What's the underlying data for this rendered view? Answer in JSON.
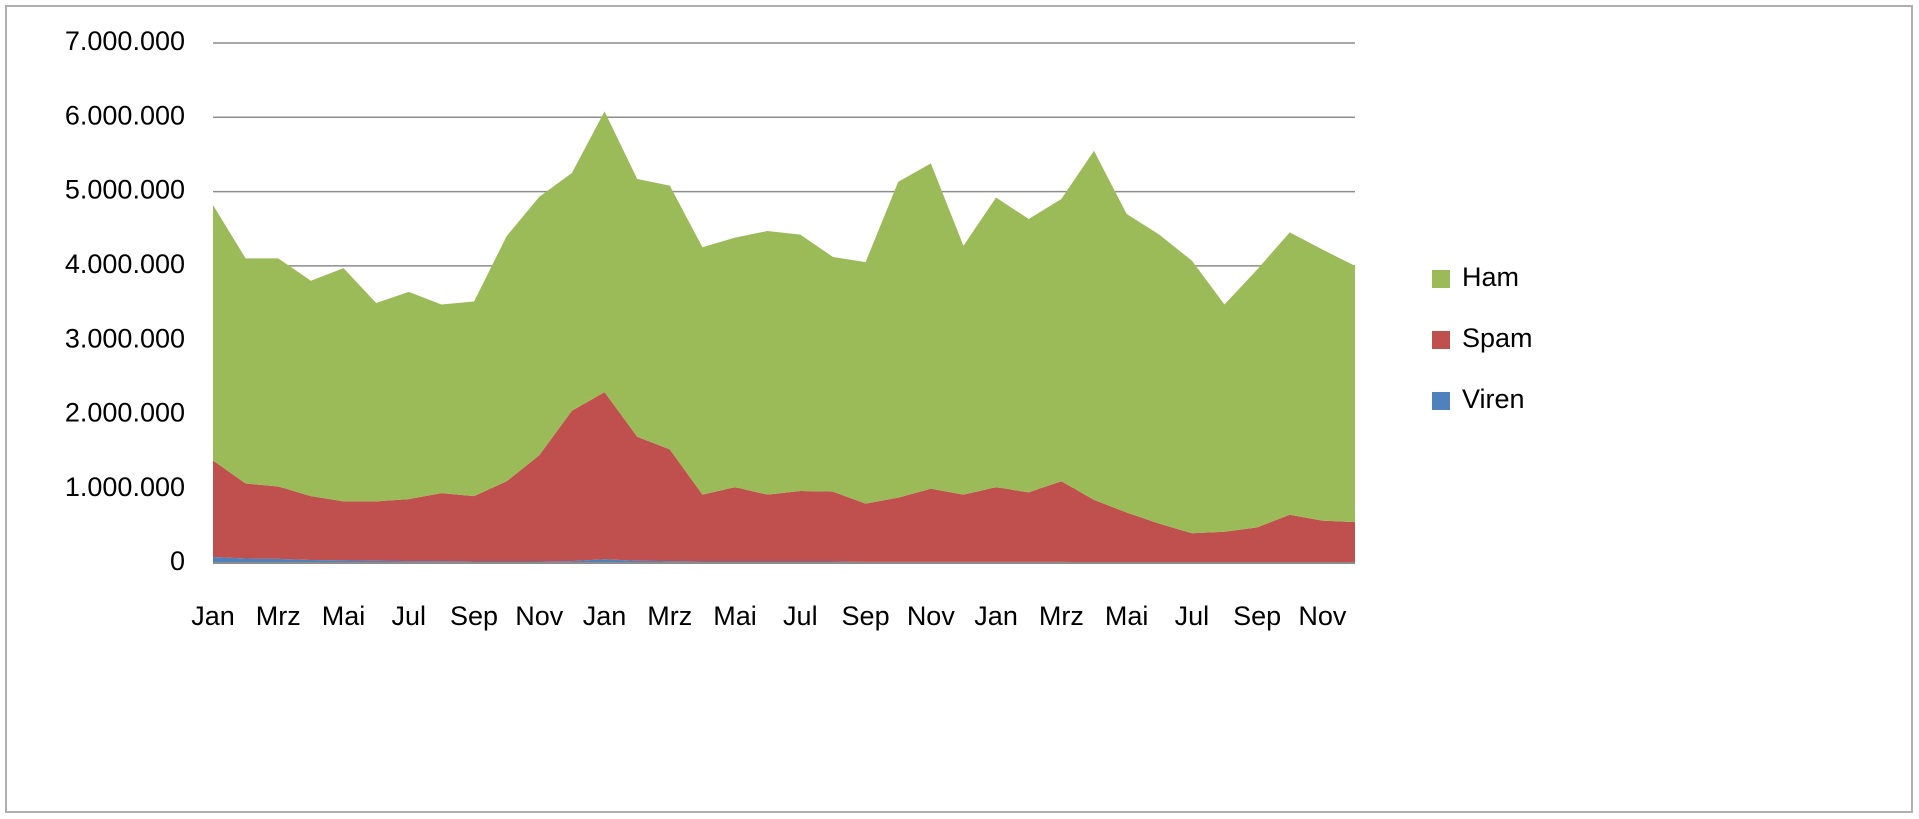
{
  "chart_data": {
    "type": "stacked_area",
    "categories": [
      "Jan",
      null,
      "Mrz",
      null,
      "Mai",
      null,
      "Jul",
      null,
      "Sep",
      null,
      "Nov",
      null,
      "Jan",
      null,
      "Mrz",
      null,
      "Mai",
      null,
      "Jul",
      null,
      "Sep",
      null,
      "Nov",
      null,
      "Jan",
      null,
      "Mrz",
      null,
      "Mai",
      null,
      "Jul",
      null,
      "Sep",
      null,
      "Nov",
      null
    ],
    "series": [
      {
        "name": "Viren",
        "color": "#4f81bd",
        "values": [
          80000,
          60000,
          55000,
          40000,
          35000,
          30000,
          25000,
          25000,
          20000,
          20000,
          20000,
          25000,
          50000,
          30000,
          25000,
          20000,
          20000,
          20000,
          20000,
          20000,
          15000,
          15000,
          15000,
          15000,
          15000,
          15000,
          15000,
          10000,
          10000,
          10000,
          10000,
          10000,
          10000,
          10000,
          10000,
          10000
        ]
      },
      {
        "name": "Spam",
        "color": "#c0504d",
        "values": [
          1300000,
          1010000,
          975000,
          860000,
          795000,
          800000,
          835000,
          915000,
          880000,
          1080000,
          1430000,
          2025000,
          2250000,
          1670000,
          1505000,
          900000,
          1000000,
          900000,
          950000,
          940000,
          785000,
          865000,
          985000,
          905000,
          1005000,
          935000,
          1085000,
          840000,
          670000,
          520000,
          390000,
          410000,
          470000,
          640000,
          560000,
          540000
        ]
      },
      {
        "name": "Ham",
        "color": "#9bbb59",
        "values": [
          3440000,
          3030000,
          3070000,
          2900000,
          3140000,
          2670000,
          2790000,
          2540000,
          2620000,
          3300000,
          3480000,
          3200000,
          3780000,
          3470000,
          3550000,
          3330000,
          3360000,
          3550000,
          3450000,
          3160000,
          3250000,
          4250000,
          4380000,
          3350000,
          3900000,
          3680000,
          3800000,
          4700000,
          4020000,
          3890000,
          3670000,
          3060000,
          3470000,
          3800000,
          3650000,
          3450000
        ]
      }
    ],
    "ylim": [
      0,
      7000000
    ],
    "yticks": [
      0,
      {
        "value": 1000000,
        "label": "1.000.000"
      },
      {
        "value": 2000000,
        "label": "2.000.000"
      },
      {
        "value": 3000000,
        "label": "3.000.000"
      },
      {
        "value": 4000000,
        "label": "4.000.000"
      },
      {
        "value": 5000000,
        "label": "5.000.000"
      },
      {
        "value": 6000000,
        "label": "6.000.000"
      },
      {
        "value": 7000000,
        "label": "7.000.000"
      }
    ],
    "grid": true,
    "legend": "right"
  }
}
